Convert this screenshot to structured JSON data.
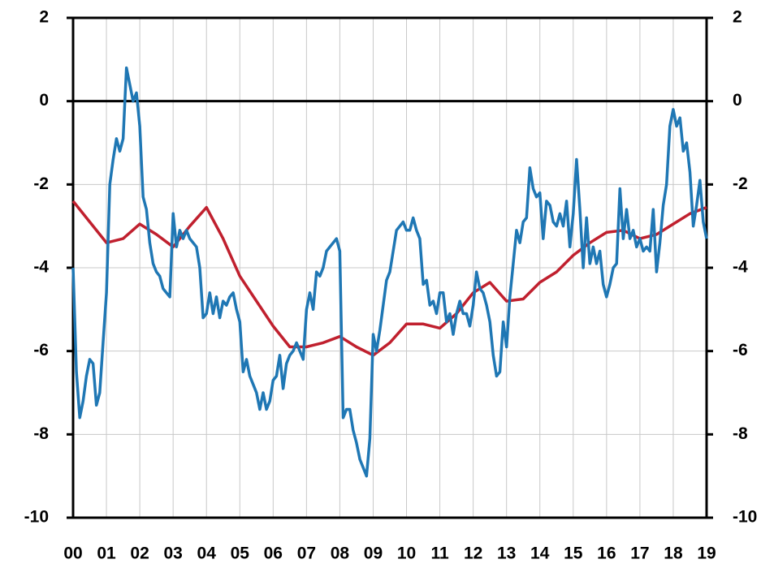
{
  "chart_data": {
    "type": "line",
    "xlim": [
      0,
      19
    ],
    "xticks": [
      {
        "value": 0,
        "label": "00"
      },
      {
        "value": 1,
        "label": "01"
      },
      {
        "value": 2,
        "label": "02"
      },
      {
        "value": 3,
        "label": "03"
      },
      {
        "value": 4,
        "label": "04"
      },
      {
        "value": 5,
        "label": "05"
      },
      {
        "value": 6,
        "label": "06"
      },
      {
        "value": 7,
        "label": "07"
      },
      {
        "value": 8,
        "label": "08"
      },
      {
        "value": 9,
        "label": "09"
      },
      {
        "value": 10,
        "label": "10"
      },
      {
        "value": 11,
        "label": "11"
      },
      {
        "value": 12,
        "label": "12"
      },
      {
        "value": 13,
        "label": "13"
      },
      {
        "value": 14,
        "label": "14"
      },
      {
        "value": 15,
        "label": "15"
      },
      {
        "value": 16,
        "label": "16"
      },
      {
        "value": 17,
        "label": "17"
      },
      {
        "value": 18,
        "label": "18"
      },
      {
        "value": 19,
        "label": "19"
      }
    ],
    "ylim": [
      -10,
      2
    ],
    "yticks": [
      -10,
      -8,
      -6,
      -4,
      -2,
      0,
      2
    ],
    "y2lim": [
      -10,
      2
    ],
    "y2ticks": [
      -10,
      -8,
      -6,
      -4,
      -2,
      0,
      2
    ],
    "grid": true,
    "series": [
      {
        "color": "#1f77b4",
        "x": [
          0,
          0.1,
          0.2,
          0.3,
          0.4,
          0.5,
          0.6,
          0.7,
          0.8,
          0.9,
          1,
          1.1,
          1.2,
          1.3,
          1.4,
          1.5,
          1.6,
          1.7,
          1.8,
          1.9,
          2,
          2.1,
          2.2,
          2.3,
          2.4,
          2.5,
          2.6,
          2.7,
          2.8,
          2.9,
          3,
          3.1,
          3.2,
          3.3,
          3.4,
          3.5,
          3.6,
          3.7,
          3.8,
          3.9,
          4,
          4.1,
          4.2,
          4.3,
          4.4,
          4.5,
          4.6,
          4.7,
          4.8,
          4.9,
          5,
          5.1,
          5.2,
          5.3,
          5.4,
          5.5,
          5.6,
          5.7,
          5.8,
          5.9,
          6,
          6.1,
          6.2,
          6.3,
          6.4,
          6.5,
          6.6,
          6.7,
          6.8,
          6.9,
          7,
          7.1,
          7.2,
          7.3,
          7.4,
          7.5,
          7.6,
          7.7,
          7.8,
          7.9,
          8,
          8.1,
          8.2,
          8.3,
          8.4,
          8.5,
          8.6,
          8.7,
          8.8,
          8.9,
          9,
          9.1,
          9.2,
          9.3,
          9.4,
          9.5,
          9.6,
          9.7,
          9.8,
          9.9,
          10,
          10.1,
          10.2,
          10.3,
          10.4,
          10.5,
          10.6,
          10.7,
          10.8,
          10.9,
          11,
          11.1,
          11.2,
          11.3,
          11.4,
          11.5,
          11.6,
          11.7,
          11.8,
          11.9,
          12,
          12.1,
          12.2,
          12.3,
          12.4,
          12.5,
          12.6,
          12.7,
          12.8,
          12.9,
          13,
          13.1,
          13.2,
          13.3,
          13.4,
          13.5,
          13.6,
          13.7,
          13.8,
          13.9,
          14,
          14.1,
          14.2,
          14.3,
          14.4,
          14.5,
          14.6,
          14.7,
          14.8,
          14.9,
          15,
          15.1,
          15.2,
          15.3,
          15.4,
          15.5,
          15.6,
          15.7,
          15.8,
          15.9,
          16,
          16.1,
          16.2,
          16.3,
          16.4,
          16.5,
          16.6,
          16.7,
          16.8,
          16.9,
          17,
          17.1,
          17.2,
          17.3,
          17.4,
          17.5,
          17.6,
          17.7,
          17.8,
          17.9,
          18,
          18.1,
          18.2,
          18.3,
          18.4,
          18.5,
          18.6,
          18.7,
          18.8,
          18.9,
          19
        ],
        "values": [
          -4.0,
          -6.5,
          -7.6,
          -7.2,
          -6.6,
          -6.2,
          -6.3,
          -7.3,
          -7.0,
          -5.8,
          -4.6,
          -2.0,
          -1.4,
          -0.9,
          -1.2,
          -0.9,
          0.8,
          0.4,
          0.0,
          0.2,
          -0.6,
          -2.3,
          -2.6,
          -3.4,
          -3.9,
          -4.1,
          -4.2,
          -4.5,
          -4.6,
          -4.7,
          -2.7,
          -3.5,
          -3.1,
          -3.3,
          -3.1,
          -3.3,
          -3.4,
          -3.5,
          -4.0,
          -5.2,
          -5.1,
          -4.6,
          -5.1,
          -4.7,
          -5.2,
          -4.8,
          -4.9,
          -4.7,
          -4.6,
          -5.0,
          -5.3,
          -6.5,
          -6.2,
          -6.6,
          -6.8,
          -7.0,
          -7.4,
          -7.0,
          -7.4,
          -7.2,
          -6.7,
          -6.6,
          -6.1,
          -6.9,
          -6.3,
          -6.1,
          -6.0,
          -5.8,
          -6.0,
          -6.2,
          -5.0,
          -4.6,
          -5.0,
          -4.1,
          -4.2,
          -4.0,
          -3.6,
          -3.5,
          -3.4,
          -3.3,
          -3.6,
          -7.6,
          -7.4,
          -7.4,
          -7.9,
          -8.2,
          -8.6,
          -8.8,
          -9.0,
          -8.1,
          -5.6,
          -6.0,
          -5.5,
          -4.9,
          -4.3,
          -4.1,
          -3.6,
          -3.1,
          -3.0,
          -2.9,
          -3.1,
          -3.1,
          -2.8,
          -3.1,
          -3.3,
          -4.4,
          -4.3,
          -4.9,
          -4.8,
          -5.1,
          -4.6,
          -4.6,
          -5.3,
          -5.1,
          -5.6,
          -5.1,
          -4.8,
          -5.1,
          -5.1,
          -5.4,
          -4.9,
          -4.1,
          -4.5,
          -4.6,
          -4.9,
          -5.3,
          -6.1,
          -6.6,
          -6.5,
          -5.3,
          -5.9,
          -4.7,
          -3.9,
          -3.1,
          -3.4,
          -2.9,
          -2.8,
          -1.6,
          -2.1,
          -2.3,
          -2.2,
          -3.3,
          -2.4,
          -2.5,
          -2.9,
          -3.0,
          -2.7,
          -3.0,
          -2.4,
          -3.5,
          -2.7,
          -1.4,
          -2.6,
          -4.0,
          -2.8,
          -3.9,
          -3.5,
          -3.9,
          -3.6,
          -4.4,
          -4.7,
          -4.4,
          -4.0,
          -3.9,
          -2.1,
          -3.3,
          -2.6,
          -3.3,
          -3.1,
          -3.5,
          -3.3,
          -3.6,
          -3.5,
          -3.6,
          -2.6,
          -4.1,
          -3.4,
          -2.5,
          -2.0,
          -0.6,
          -0.2,
          -0.6,
          -0.4,
          -1.2,
          -1.0,
          -1.7,
          -3.0,
          -2.5,
          -1.9,
          -2.9,
          -3.3
        ]
      },
      {
        "color": "#c0202e",
        "x": [
          0,
          0.5,
          1,
          1.5,
          2,
          2.5,
          3,
          3.5,
          4,
          4.5,
          5,
          5.5,
          6,
          6.5,
          7,
          7.5,
          8,
          8.5,
          9,
          9.5,
          10,
          10.5,
          11,
          11.5,
          12,
          12.5,
          13,
          13.5,
          14,
          14.5,
          15,
          15.5,
          16,
          16.5,
          17,
          17.5,
          18,
          18.5,
          19
        ],
        "values": [
          -2.4,
          -2.9,
          -3.4,
          -3.3,
          -2.95,
          -3.2,
          -3.5,
          -3.0,
          -2.55,
          -3.3,
          -4.2,
          -4.8,
          -5.4,
          -5.9,
          -5.9,
          -5.8,
          -5.65,
          -5.9,
          -6.1,
          -5.8,
          -5.35,
          -5.35,
          -5.45,
          -5.1,
          -4.6,
          -4.35,
          -4.8,
          -4.75,
          -4.35,
          -4.1,
          -3.7,
          -3.4,
          -3.15,
          -3.1,
          -3.3,
          -3.2,
          -2.95,
          -2.7,
          -2.55
        ]
      }
    ]
  }
}
